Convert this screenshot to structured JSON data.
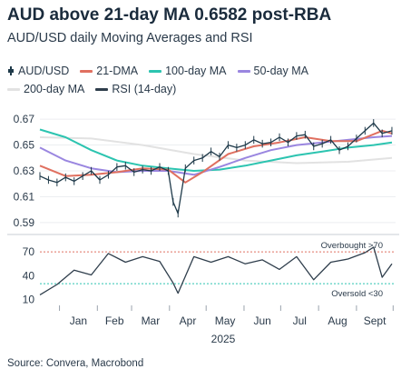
{
  "title": "AUD above 21-day MA 0.6582 post-RBA",
  "subtitle": "AUD/USD daily Moving Averages and RSI",
  "source": "Source: Convera, Macrobond",
  "legend": [
    {
      "label": "AUD/USD",
      "color": "#1f3a4a",
      "style": "candle"
    },
    {
      "label": "21-DMA",
      "color": "#e07060",
      "style": "line"
    },
    {
      "label": "100-day MA",
      "color": "#2cc4b0",
      "style": "line"
    },
    {
      "label": "50-day MA",
      "color": "#9a86e0",
      "style": "line"
    },
    {
      "label": "200-day MA",
      "color": "#e2e2e2",
      "style": "line"
    },
    {
      "label": "RSI (14-day)",
      "color": "#2f3e4c",
      "style": "line"
    }
  ],
  "chart_data": [
    {
      "type": "line",
      "panel": "price",
      "x_axis": {
        "year": "2025",
        "month_labels": [
          "Jan",
          "Feb",
          "Mar",
          "Apr",
          "May",
          "Jun",
          "Jul",
          "Aug",
          "Sept"
        ]
      },
      "ylim": [
        0.585,
        0.675
      ],
      "yticks": [
        0.59,
        0.61,
        0.63,
        0.65,
        0.67
      ],
      "ytick_labels": [
        "0.59",
        "0.61",
        "0.63",
        "0.65",
        "0.67"
      ],
      "grid": "horizontal",
      "series": [
        {
          "name": "AUD/USD",
          "color": "#1f3a4a",
          "x": [
            "2024-12-16",
            "2024-12-23",
            "2024-12-30",
            "2025-01-06",
            "2025-01-13",
            "2025-01-20",
            "2025-01-27",
            "2025-02-03",
            "2025-02-10",
            "2025-02-17",
            "2025-02-24",
            "2025-03-03",
            "2025-03-10",
            "2025-03-17",
            "2025-03-24",
            "2025-03-31",
            "2025-04-04",
            "2025-04-08",
            "2025-04-14",
            "2025-04-21",
            "2025-04-28",
            "2025-05-05",
            "2025-05-12",
            "2025-05-19",
            "2025-05-26",
            "2025-06-02",
            "2025-06-09",
            "2025-06-16",
            "2025-06-23",
            "2025-06-30",
            "2025-07-07",
            "2025-07-14",
            "2025-07-21",
            "2025-07-28",
            "2025-08-04",
            "2025-08-11",
            "2025-08-18",
            "2025-08-25",
            "2025-09-01",
            "2025-09-08",
            "2025-09-15",
            "2025-09-22",
            "2025-09-30"
          ],
          "values": [
            0.626,
            0.623,
            0.621,
            0.625,
            0.622,
            0.626,
            0.63,
            0.623,
            0.627,
            0.633,
            0.634,
            0.629,
            0.631,
            0.63,
            0.633,
            0.63,
            0.606,
            0.597,
            0.632,
            0.638,
            0.64,
            0.645,
            0.641,
            0.65,
            0.648,
            0.65,
            0.654,
            0.651,
            0.652,
            0.656,
            0.652,
            0.657,
            0.658,
            0.649,
            0.651,
            0.654,
            0.646,
            0.649,
            0.655,
            0.661,
            0.667,
            0.659,
            0.661
          ]
        },
        {
          "name": "21-DMA",
          "color": "#e07060",
          "x": [
            "2024-12-16",
            "2025-01-06",
            "2025-01-27",
            "2025-02-17",
            "2025-03-10",
            "2025-03-31",
            "2025-04-14",
            "2025-04-28",
            "2025-05-19",
            "2025-06-09",
            "2025-06-30",
            "2025-07-21",
            "2025-08-11",
            "2025-09-01",
            "2025-09-22",
            "2025-09-30"
          ],
          "values": [
            0.634,
            0.626,
            0.627,
            0.629,
            0.632,
            0.631,
            0.621,
            0.629,
            0.643,
            0.649,
            0.652,
            0.656,
            0.653,
            0.653,
            0.661,
            0.659
          ]
        },
        {
          "name": "100-day MA",
          "color": "#2cc4b0",
          "x": [
            "2024-12-16",
            "2025-01-06",
            "2025-01-27",
            "2025-02-17",
            "2025-03-10",
            "2025-03-31",
            "2025-04-21",
            "2025-05-12",
            "2025-06-02",
            "2025-06-23",
            "2025-07-14",
            "2025-08-04",
            "2025-08-25",
            "2025-09-15",
            "2025-09-30"
          ],
          "values": [
            0.662,
            0.656,
            0.646,
            0.638,
            0.634,
            0.632,
            0.63,
            0.631,
            0.634,
            0.638,
            0.642,
            0.645,
            0.648,
            0.65,
            0.652
          ]
        },
        {
          "name": "50-day MA",
          "color": "#9a86e0",
          "x": [
            "2024-12-16",
            "2025-01-06",
            "2025-01-27",
            "2025-02-17",
            "2025-03-10",
            "2025-03-31",
            "2025-04-21",
            "2025-05-12",
            "2025-06-02",
            "2025-06-23",
            "2025-07-14",
            "2025-08-04",
            "2025-08-25",
            "2025-09-15",
            "2025-09-30"
          ],
          "values": [
            0.648,
            0.638,
            0.632,
            0.629,
            0.63,
            0.63,
            0.627,
            0.633,
            0.64,
            0.646,
            0.65,
            0.652,
            0.654,
            0.656,
            0.657
          ]
        },
        {
          "name": "200-day MA",
          "color": "#e2e2e2",
          "x": [
            "2024-12-16",
            "2025-01-27",
            "2025-03-10",
            "2025-04-21",
            "2025-06-02",
            "2025-07-14",
            "2025-08-25",
            "2025-09-30"
          ],
          "values": [
            0.656,
            0.655,
            0.65,
            0.643,
            0.638,
            0.636,
            0.637,
            0.64
          ]
        }
      ]
    },
    {
      "type": "line",
      "panel": "rsi",
      "ylim": [
        5,
        85
      ],
      "yticks": [
        10,
        40,
        70
      ],
      "ytick_labels": [
        "10",
        "40",
        "70"
      ],
      "reference_lines": [
        {
          "value": 70,
          "color": "#e07060",
          "label": "Overbought >70"
        },
        {
          "value": 30,
          "color": "#2cc4b0",
          "label": "Oversold <30"
        }
      ],
      "series": [
        {
          "name": "RSI (14-day)",
          "color": "#2f3e4c",
          "x": [
            "2024-12-16",
            "2024-12-30",
            "2025-01-13",
            "2025-01-27",
            "2025-02-10",
            "2025-02-24",
            "2025-03-10",
            "2025-03-24",
            "2025-04-04",
            "2025-04-08",
            "2025-04-21",
            "2025-05-05",
            "2025-05-19",
            "2025-06-02",
            "2025-06-16",
            "2025-06-30",
            "2025-07-14",
            "2025-07-28",
            "2025-08-11",
            "2025-08-25",
            "2025-09-08",
            "2025-09-15",
            "2025-09-22",
            "2025-09-30"
          ],
          "values": [
            16,
            29,
            47,
            41,
            68,
            57,
            64,
            58,
            31,
            18,
            64,
            57,
            64,
            55,
            60,
            48,
            64,
            35,
            57,
            61,
            69,
            76,
            38,
            55
          ]
        }
      ]
    }
  ]
}
